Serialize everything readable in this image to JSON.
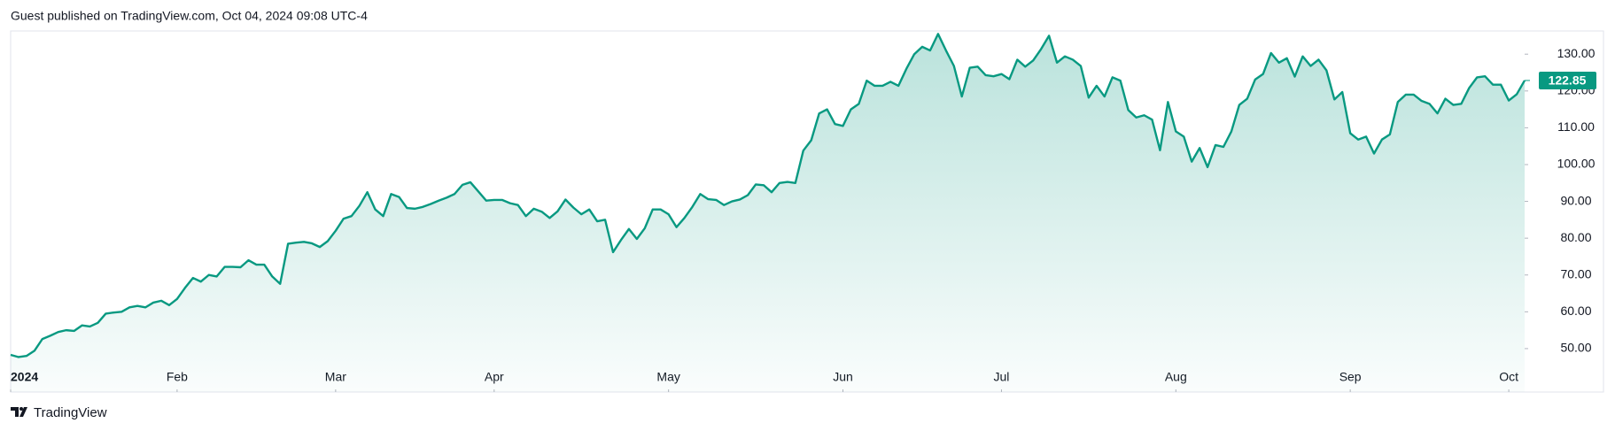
{
  "header": {
    "text": "Guest published on TradingView.com, Oct 04, 2024 09:08 UTC-4"
  },
  "footer": {
    "brand": "TradingView"
  },
  "chart_data": {
    "type": "line",
    "color": "#089981",
    "values": [
      48.3,
      47.7,
      48,
      49.4,
      52.6,
      53.5,
      54.5,
      55,
      54.8,
      56.3,
      56,
      57,
      59.5,
      59.8,
      60,
      61.2,
      61.6,
      61.2,
      62.5,
      63,
      61.8,
      63.5,
      66.5,
      69.2,
      68.2,
      70,
      69.6,
      72.2,
      72.2,
      72.1,
      74,
      72.8,
      72.8,
      69.6,
      67.6,
      78.5,
      78.8,
      79,
      78.6,
      77.6,
      79.2,
      82,
      85.3,
      86,
      88.8,
      92.5,
      87.8,
      86,
      92,
      91.2,
      88.2,
      88,
      88.5,
      89.3,
      90.2,
      91,
      92,
      94.5,
      95.2,
      92.7,
      90.2,
      90.4,
      90.4,
      89.5,
      89,
      86,
      88,
      87.2,
      85.5,
      87.3,
      90.5,
      88.3,
      86.5,
      87.8,
      84.6,
      85,
      76.2,
      79.5,
      82.5,
      79.8,
      82.7,
      87.8,
      87.8,
      86.5,
      83,
      85.5,
      88.5,
      92,
      90.6,
      90.4,
      89,
      90,
      90.5,
      91.7,
      94.6,
      94.4,
      92.5,
      95,
      95.3,
      95,
      103.8,
      106.6,
      113.9,
      115,
      111,
      110.5,
      115,
      116.5,
      122.8,
      121.4,
      121.4,
      122.5,
      121.4,
      126,
      130,
      132,
      131,
      135.5,
      131,
      126.8,
      118.5,
      126.3,
      126.6,
      124.3,
      124,
      124.6,
      123.2,
      128.5,
      126.6,
      128.3,
      131.4,
      135,
      127.7,
      129.4,
      128.5,
      126.8,
      118.2,
      121.4,
      118.5,
      123.7,
      122.8,
      114.8,
      112.8,
      113.4,
      112.2,
      103.9,
      117,
      109,
      107.6,
      100.8,
      104.5,
      99.3,
      105.3,
      104.8,
      109,
      116.2,
      117.9,
      123.1,
      124.6,
      130.3,
      127.7,
      128.9,
      123.9,
      129.4,
      126.8,
      128.5,
      125.6,
      117.7,
      119.7,
      108.5,
      106.8,
      107.6,
      103,
      106.8,
      108.2,
      117,
      119,
      119,
      117.3,
      116.5,
      113.9,
      117.9,
      116.2,
      116.5,
      120.8,
      123.7,
      124,
      121.7,
      121.7,
      117.4,
      119.1,
      122.85
    ],
    "last_value_label": "122.85",
    "xlim": [
      0,
      191
    ],
    "xticks": [
      {
        "value": 0,
        "label": "2024"
      },
      {
        "value": 21,
        "label": "Feb"
      },
      {
        "value": 41,
        "label": "Mar"
      },
      {
        "value": 61,
        "label": "Apr"
      },
      {
        "value": 83,
        "label": "May"
      },
      {
        "value": 105,
        "label": "Jun"
      },
      {
        "value": 125,
        "label": "Jul"
      },
      {
        "value": 147,
        "label": "Aug"
      },
      {
        "value": 169,
        "label": "Sep"
      },
      {
        "value": 189,
        "label": "Oct"
      }
    ],
    "ylim": [
      38.2,
      136.3
    ],
    "yticks": [
      {
        "value": 50,
        "label": "50.00"
      },
      {
        "value": 60,
        "label": "60.00"
      },
      {
        "value": 70,
        "label": "70.00"
      },
      {
        "value": 80,
        "label": "80.00"
      },
      {
        "value": 90,
        "label": "90.00"
      },
      {
        "value": 100,
        "label": "100.00"
      },
      {
        "value": 110,
        "label": "110.00"
      },
      {
        "value": 120,
        "label": "120.00"
      },
      {
        "value": 130,
        "label": "130.00"
      }
    ]
  }
}
